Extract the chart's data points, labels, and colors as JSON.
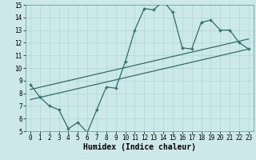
{
  "title": "",
  "xlabel": "Humidex (Indice chaleur)",
  "ylabel": "",
  "bg_color": "#cce8e8",
  "line_color": "#2e6e68",
  "line1_x": [
    0,
    1,
    2,
    3,
    4,
    5,
    6,
    7,
    8,
    9,
    10,
    11,
    12,
    13,
    14,
    15,
    16,
    17,
    18,
    19,
    20,
    21,
    22,
    23
  ],
  "line1_y": [
    8.7,
    7.7,
    7.0,
    6.7,
    5.2,
    5.7,
    4.9,
    6.7,
    8.5,
    8.4,
    10.5,
    13.0,
    14.7,
    14.6,
    15.3,
    14.4,
    11.6,
    11.5,
    13.6,
    13.8,
    13.0,
    13.0,
    12.0,
    11.5
  ],
  "line2_x": [
    0,
    23
  ],
  "line2_y": [
    8.3,
    12.3
  ],
  "line3_x": [
    0,
    23
  ],
  "line3_y": [
    7.5,
    11.5
  ],
  "xlim": [
    -0.5,
    23.5
  ],
  "ylim": [
    5,
    15
  ],
  "xticks": [
    0,
    1,
    2,
    3,
    4,
    5,
    6,
    7,
    8,
    9,
    10,
    11,
    12,
    13,
    14,
    15,
    16,
    17,
    18,
    19,
    20,
    21,
    22,
    23
  ],
  "yticks": [
    5,
    6,
    7,
    8,
    9,
    10,
    11,
    12,
    13,
    14,
    15
  ],
  "tick_fontsize": 5.5,
  "xlabel_fontsize": 7
}
